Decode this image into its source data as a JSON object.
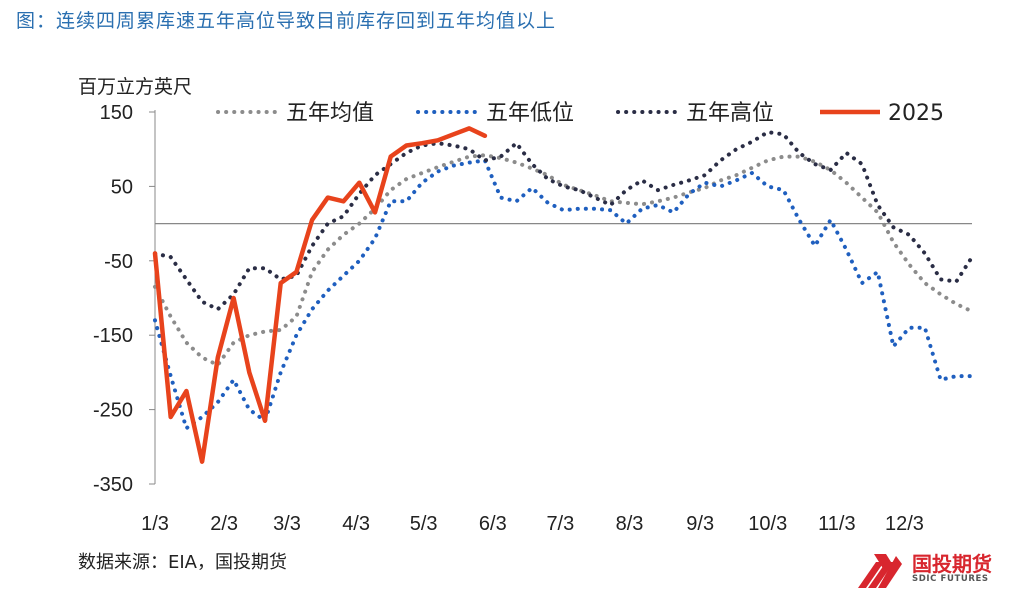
{
  "figure_title": "图：连续四周累库速五年高位导致目前库存回到五年均值以上",
  "source_note": "数据来源：EIA，国投期货",
  "logo": {
    "name": "国投期货",
    "sub": "SDIC FUTURES"
  },
  "chart_data": {
    "type": "line",
    "title": "",
    "ylabel": "百万立方英尺",
    "xlabel": "",
    "ylim": [
      -350,
      150
    ],
    "xlim": [
      1,
      53
    ],
    "yticks": [
      150,
      50,
      -50,
      -150,
      -250,
      -350
    ],
    "xticks": [
      {
        "label": "1/3",
        "week": 1
      },
      {
        "label": "2/3",
        "week": 5.4
      },
      {
        "label": "3/3",
        "week": 9.4
      },
      {
        "label": "4/3",
        "week": 13.8
      },
      {
        "label": "5/3",
        "week": 18.1
      },
      {
        "label": "6/3",
        "week": 22.5
      },
      {
        "label": "7/3",
        "week": 26.8
      },
      {
        "label": "8/3",
        "week": 31.2
      },
      {
        "label": "9/3",
        "week": 35.7
      },
      {
        "label": "10/3",
        "week": 40.0
      },
      {
        "label": "11/3",
        "week": 44.4
      },
      {
        "label": "12/3",
        "week": 48.7
      }
    ],
    "zero_line": true,
    "legend_position": "top",
    "series": [
      {
        "name": "五年均值",
        "style": "dotted",
        "color": "#8c8c8c",
        "x": [
          1,
          2,
          3,
          4,
          5,
          6,
          7,
          8,
          9,
          10,
          11,
          12,
          13,
          14,
          15,
          16,
          17,
          18,
          19,
          20,
          21,
          22,
          23,
          24,
          25,
          26,
          27,
          28,
          29,
          30,
          31,
          32,
          33,
          34,
          35,
          36,
          37,
          38,
          39,
          40,
          41,
          42,
          43,
          44,
          45,
          46,
          47,
          48,
          49,
          50,
          51,
          52,
          53
        ],
        "values": [
          -85,
          -125,
          -160,
          -180,
          -190,
          -160,
          -150,
          -145,
          -143,
          -125,
          -65,
          -35,
          -15,
          0,
          20,
          45,
          60,
          68,
          76,
          83,
          90,
          92,
          88,
          82,
          74,
          65,
          52,
          45,
          38,
          30,
          28,
          26,
          30,
          35,
          42,
          48,
          58,
          65,
          75,
          85,
          90,
          90,
          83,
          72,
          55,
          35,
          15,
          -25,
          -55,
          -80,
          -95,
          -108,
          -118
        ]
      },
      {
        "name": "五年低位",
        "style": "dotted",
        "color": "#1f5fbf",
        "x": [
          1,
          2,
          3,
          4,
          5,
          6,
          7,
          8,
          9,
          10,
          11,
          12,
          13,
          14,
          15,
          16,
          17,
          18,
          19,
          20,
          21,
          22,
          23,
          24,
          25,
          26,
          27,
          28,
          29,
          30,
          31,
          32,
          33,
          34,
          35,
          36,
          37,
          38,
          39,
          40,
          41,
          42,
          43,
          44,
          45,
          46,
          47,
          48,
          49,
          50,
          51,
          52,
          53
        ],
        "values": [
          -130,
          -205,
          -275,
          -260,
          -240,
          -210,
          -250,
          -265,
          -200,
          -150,
          -115,
          -90,
          -70,
          -50,
          -20,
          30,
          30,
          55,
          70,
          78,
          82,
          85,
          35,
          30,
          48,
          28,
          18,
          20,
          20,
          18,
          0,
          20,
          25,
          15,
          40,
          55,
          50,
          58,
          68,
          50,
          45,
          5,
          -30,
          5,
          -35,
          -80,
          -65,
          -165,
          -140,
          -140,
          -210,
          -205,
          -205
        ]
      },
      {
        "name": "五年高位",
        "style": "dotted",
        "color": "#2a2d45",
        "x": [
          1,
          2,
          3,
          4,
          5,
          6,
          7,
          8,
          9,
          10,
          11,
          12,
          13,
          14,
          15,
          16,
          17,
          18,
          19,
          20,
          21,
          22,
          23,
          24,
          25,
          26,
          27,
          28,
          29,
          30,
          31,
          32,
          33,
          34,
          35,
          36,
          37,
          38,
          39,
          40,
          41,
          42,
          43,
          44,
          45,
          46,
          47,
          48,
          49,
          50,
          51,
          52,
          53
        ],
        "values": [
          -40,
          -45,
          -75,
          -105,
          -115,
          -95,
          -60,
          -60,
          -75,
          -70,
          -30,
          0,
          10,
          40,
          65,
          80,
          95,
          105,
          108,
          105,
          100,
          85,
          90,
          108,
          80,
          60,
          50,
          45,
          35,
          25,
          45,
          58,
          45,
          52,
          58,
          65,
          85,
          100,
          110,
          123,
          120,
          95,
          80,
          72,
          95,
          80,
          25,
          -5,
          -15,
          -40,
          -75,
          -78,
          -45
        ]
      },
      {
        "name": "2025",
        "style": "solid",
        "color": "#e8431c",
        "x": [
          1,
          2,
          3,
          4,
          5,
          6,
          7,
          8,
          9,
          10,
          11,
          12,
          13,
          14,
          15,
          16,
          17,
          18,
          19,
          20,
          21,
          22
        ],
        "values": [
          -40,
          -260,
          -225,
          -320,
          -180,
          -100,
          -200,
          -265,
          -80,
          -65,
          5,
          35,
          30,
          55,
          15,
          90,
          105,
          108,
          112,
          120,
          128,
          118
        ]
      }
    ]
  }
}
